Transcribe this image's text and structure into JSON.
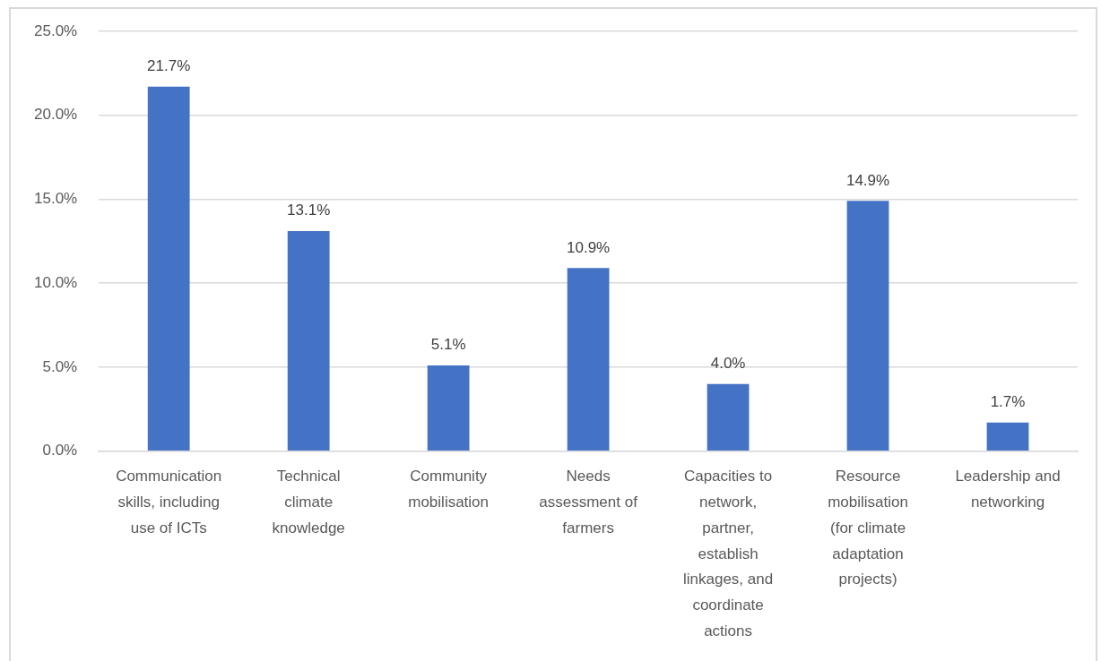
{
  "chart_data": {
    "type": "bar",
    "categories": [
      "Communication skills, including use of ICTs",
      "Technical climate knowledge",
      "Community mobilisation",
      "Needs assessment of farmers",
      "Capacities to network, partner, establish linkages, and coordinate actions",
      "Resource mobilisation (for climate adaptation projects)",
      "Leadership and networking"
    ],
    "values": [
      21.7,
      13.1,
      5.1,
      10.9,
      4.0,
      14.9,
      1.7
    ],
    "value_labels": [
      "21.7%",
      "13.1%",
      "5.1%",
      "10.9%",
      "4.0%",
      "14.9%",
      "1.7%"
    ],
    "color": "#4472c4",
    "ylim": [
      0,
      25
    ],
    "yticks": [
      {
        "value": 0,
        "label": "0.0%"
      },
      {
        "value": 5,
        "label": "5.0%"
      },
      {
        "value": 10,
        "label": "10.0%"
      },
      {
        "value": 15,
        "label": "15.0%"
      },
      {
        "value": 20,
        "label": "20.0%"
      },
      {
        "value": 25,
        "label": "25.0%"
      }
    ],
    "grid": "y"
  }
}
